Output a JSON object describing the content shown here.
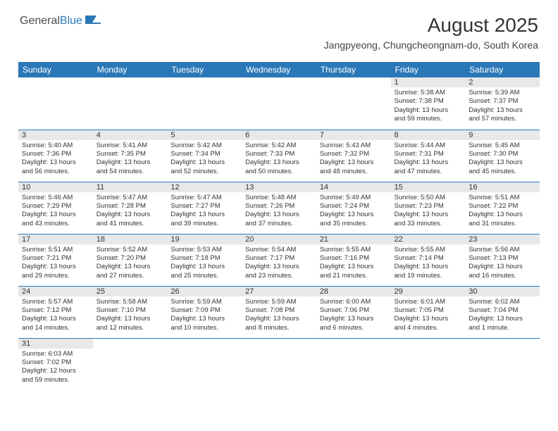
{
  "logo": {
    "text1": "General",
    "text2": "Blue"
  },
  "title": "August 2025",
  "location": "Jangpyeong, Chungcheongnam-do, South Korea",
  "weekdays": [
    "Sunday",
    "Monday",
    "Tuesday",
    "Wednesday",
    "Thursday",
    "Friday",
    "Saturday"
  ],
  "colors": {
    "header_bg": "#2b78b8",
    "header_text": "#ffffff",
    "daynum_bg": "#e8e8e8",
    "border": "#2b78b8",
    "text": "#333333"
  },
  "grid": [
    [
      null,
      null,
      null,
      null,
      null,
      {
        "n": "1",
        "sr": "Sunrise: 5:38 AM",
        "ss": "Sunset: 7:38 PM",
        "dl1": "Daylight: 13 hours",
        "dl2": "and 59 minutes."
      },
      {
        "n": "2",
        "sr": "Sunrise: 5:39 AM",
        "ss": "Sunset: 7:37 PM",
        "dl1": "Daylight: 13 hours",
        "dl2": "and 57 minutes."
      }
    ],
    [
      {
        "n": "3",
        "sr": "Sunrise: 5:40 AM",
        "ss": "Sunset: 7:36 PM",
        "dl1": "Daylight: 13 hours",
        "dl2": "and 56 minutes."
      },
      {
        "n": "4",
        "sr": "Sunrise: 5:41 AM",
        "ss": "Sunset: 7:35 PM",
        "dl1": "Daylight: 13 hours",
        "dl2": "and 54 minutes."
      },
      {
        "n": "5",
        "sr": "Sunrise: 5:42 AM",
        "ss": "Sunset: 7:34 PM",
        "dl1": "Daylight: 13 hours",
        "dl2": "and 52 minutes."
      },
      {
        "n": "6",
        "sr": "Sunrise: 5:42 AM",
        "ss": "Sunset: 7:33 PM",
        "dl1": "Daylight: 13 hours",
        "dl2": "and 50 minutes."
      },
      {
        "n": "7",
        "sr": "Sunrise: 5:43 AM",
        "ss": "Sunset: 7:32 PM",
        "dl1": "Daylight: 13 hours",
        "dl2": "and 48 minutes."
      },
      {
        "n": "8",
        "sr": "Sunrise: 5:44 AM",
        "ss": "Sunset: 7:31 PM",
        "dl1": "Daylight: 13 hours",
        "dl2": "and 47 minutes."
      },
      {
        "n": "9",
        "sr": "Sunrise: 5:45 AM",
        "ss": "Sunset: 7:30 PM",
        "dl1": "Daylight: 13 hours",
        "dl2": "and 45 minutes."
      }
    ],
    [
      {
        "n": "10",
        "sr": "Sunrise: 5:46 AM",
        "ss": "Sunset: 7:29 PM",
        "dl1": "Daylight: 13 hours",
        "dl2": "and 43 minutes."
      },
      {
        "n": "11",
        "sr": "Sunrise: 5:47 AM",
        "ss": "Sunset: 7:28 PM",
        "dl1": "Daylight: 13 hours",
        "dl2": "and 41 minutes."
      },
      {
        "n": "12",
        "sr": "Sunrise: 5:47 AM",
        "ss": "Sunset: 7:27 PM",
        "dl1": "Daylight: 13 hours",
        "dl2": "and 39 minutes."
      },
      {
        "n": "13",
        "sr": "Sunrise: 5:48 AM",
        "ss": "Sunset: 7:26 PM",
        "dl1": "Daylight: 13 hours",
        "dl2": "and 37 minutes."
      },
      {
        "n": "14",
        "sr": "Sunrise: 5:49 AM",
        "ss": "Sunset: 7:24 PM",
        "dl1": "Daylight: 13 hours",
        "dl2": "and 35 minutes."
      },
      {
        "n": "15",
        "sr": "Sunrise: 5:50 AM",
        "ss": "Sunset: 7:23 PM",
        "dl1": "Daylight: 13 hours",
        "dl2": "and 33 minutes."
      },
      {
        "n": "16",
        "sr": "Sunrise: 5:51 AM",
        "ss": "Sunset: 7:22 PM",
        "dl1": "Daylight: 13 hours",
        "dl2": "and 31 minutes."
      }
    ],
    [
      {
        "n": "17",
        "sr": "Sunrise: 5:51 AM",
        "ss": "Sunset: 7:21 PM",
        "dl1": "Daylight: 13 hours",
        "dl2": "and 29 minutes."
      },
      {
        "n": "18",
        "sr": "Sunrise: 5:52 AM",
        "ss": "Sunset: 7:20 PM",
        "dl1": "Daylight: 13 hours",
        "dl2": "and 27 minutes."
      },
      {
        "n": "19",
        "sr": "Sunrise: 5:53 AM",
        "ss": "Sunset: 7:18 PM",
        "dl1": "Daylight: 13 hours",
        "dl2": "and 25 minutes."
      },
      {
        "n": "20",
        "sr": "Sunrise: 5:54 AM",
        "ss": "Sunset: 7:17 PM",
        "dl1": "Daylight: 13 hours",
        "dl2": "and 23 minutes."
      },
      {
        "n": "21",
        "sr": "Sunrise: 5:55 AM",
        "ss": "Sunset: 7:16 PM",
        "dl1": "Daylight: 13 hours",
        "dl2": "and 21 minutes."
      },
      {
        "n": "22",
        "sr": "Sunrise: 5:55 AM",
        "ss": "Sunset: 7:14 PM",
        "dl1": "Daylight: 13 hours",
        "dl2": "and 19 minutes."
      },
      {
        "n": "23",
        "sr": "Sunrise: 5:56 AM",
        "ss": "Sunset: 7:13 PM",
        "dl1": "Daylight: 13 hours",
        "dl2": "and 16 minutes."
      }
    ],
    [
      {
        "n": "24",
        "sr": "Sunrise: 5:57 AM",
        "ss": "Sunset: 7:12 PM",
        "dl1": "Daylight: 13 hours",
        "dl2": "and 14 minutes."
      },
      {
        "n": "25",
        "sr": "Sunrise: 5:58 AM",
        "ss": "Sunset: 7:10 PM",
        "dl1": "Daylight: 13 hours",
        "dl2": "and 12 minutes."
      },
      {
        "n": "26",
        "sr": "Sunrise: 5:59 AM",
        "ss": "Sunset: 7:09 PM",
        "dl1": "Daylight: 13 hours",
        "dl2": "and 10 minutes."
      },
      {
        "n": "27",
        "sr": "Sunrise: 5:59 AM",
        "ss": "Sunset: 7:08 PM",
        "dl1": "Daylight: 13 hours",
        "dl2": "and 8 minutes."
      },
      {
        "n": "28",
        "sr": "Sunrise: 6:00 AM",
        "ss": "Sunset: 7:06 PM",
        "dl1": "Daylight: 13 hours",
        "dl2": "and 6 minutes."
      },
      {
        "n": "29",
        "sr": "Sunrise: 6:01 AM",
        "ss": "Sunset: 7:05 PM",
        "dl1": "Daylight: 13 hours",
        "dl2": "and 4 minutes."
      },
      {
        "n": "30",
        "sr": "Sunrise: 6:02 AM",
        "ss": "Sunset: 7:04 PM",
        "dl1": "Daylight: 13 hours",
        "dl2": "and 1 minute."
      }
    ],
    [
      {
        "n": "31",
        "sr": "Sunrise: 6:03 AM",
        "ss": "Sunset: 7:02 PM",
        "dl1": "Daylight: 12 hours",
        "dl2": "and 59 minutes."
      },
      null,
      null,
      null,
      null,
      null,
      null
    ]
  ]
}
